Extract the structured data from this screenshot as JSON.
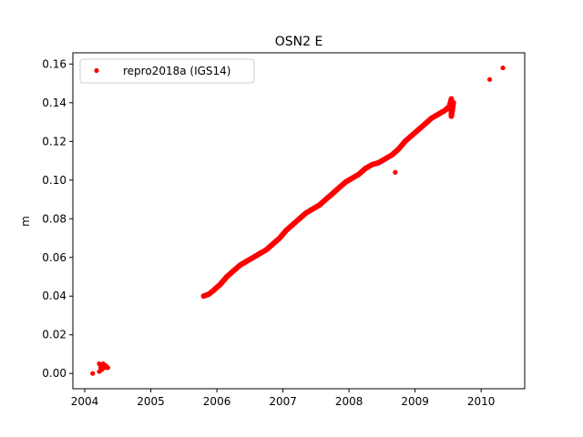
{
  "chart_data": {
    "type": "scatter",
    "title": "OSN2 E",
    "xlabel": "",
    "ylabel": "m",
    "xlim": [
      2003.82,
      2010.66
    ],
    "ylim": [
      -0.0079,
      0.1658
    ],
    "xticks": [
      "2004",
      "2005",
      "2006",
      "2007",
      "2008",
      "2009",
      "2010"
    ],
    "xtick_values": [
      2004,
      2005,
      2006,
      2007,
      2008,
      2009,
      2010
    ],
    "yticks": [
      "0.00",
      "0.02",
      "0.04",
      "0.06",
      "0.08",
      "0.10",
      "0.12",
      "0.14",
      "0.16"
    ],
    "ytick_values": [
      0.0,
      0.02,
      0.04,
      0.06,
      0.08,
      0.1,
      0.12,
      0.14,
      0.16
    ],
    "grid": false,
    "legend_position": "top-left",
    "series": [
      {
        "name": "repro2018a (IGS14)",
        "color": "#ff0000",
        "marker": "circle",
        "x": [
          2004.12,
          2004.22,
          2004.24,
          2004.26,
          2004.28,
          2004.3,
          2004.32,
          2004.35,
          2004.22,
          2004.26,
          2004.3,
          2004.34,
          2005.8,
          2005.88,
          2005.95,
          2006.05,
          2006.15,
          2006.25,
          2006.35,
          2006.45,
          2006.55,
          2006.65,
          2006.75,
          2006.85,
          2006.95,
          2007.05,
          2007.15,
          2007.25,
          2007.35,
          2007.45,
          2007.55,
          2007.65,
          2007.75,
          2007.85,
          2007.95,
          2008.05,
          2008.15,
          2008.25,
          2008.35,
          2008.45,
          2008.55,
          2008.65,
          2008.7,
          2008.75,
          2008.85,
          2008.95,
          2009.05,
          2009.15,
          2009.25,
          2009.35,
          2009.45,
          2009.52,
          2009.55,
          2009.58,
          2009.55,
          2010.13,
          2010.33
        ],
        "y": [
          0.0,
          0.001,
          0.003,
          0.004,
          0.005,
          0.003,
          0.004,
          0.003,
          0.005,
          0.002,
          0.004,
          0.003,
          0.04,
          0.041,
          0.043,
          0.046,
          0.05,
          0.053,
          0.056,
          0.058,
          0.06,
          0.062,
          0.064,
          0.067,
          0.07,
          0.074,
          0.077,
          0.08,
          0.083,
          0.085,
          0.087,
          0.09,
          0.093,
          0.096,
          0.099,
          0.101,
          0.103,
          0.106,
          0.108,
          0.109,
          0.111,
          0.113,
          0.104,
          0.116,
          0.12,
          0.123,
          0.126,
          0.129,
          0.132,
          0.134,
          0.136,
          0.138,
          0.142,
          0.14,
          0.133,
          0.152,
          0.158
        ]
      }
    ]
  }
}
